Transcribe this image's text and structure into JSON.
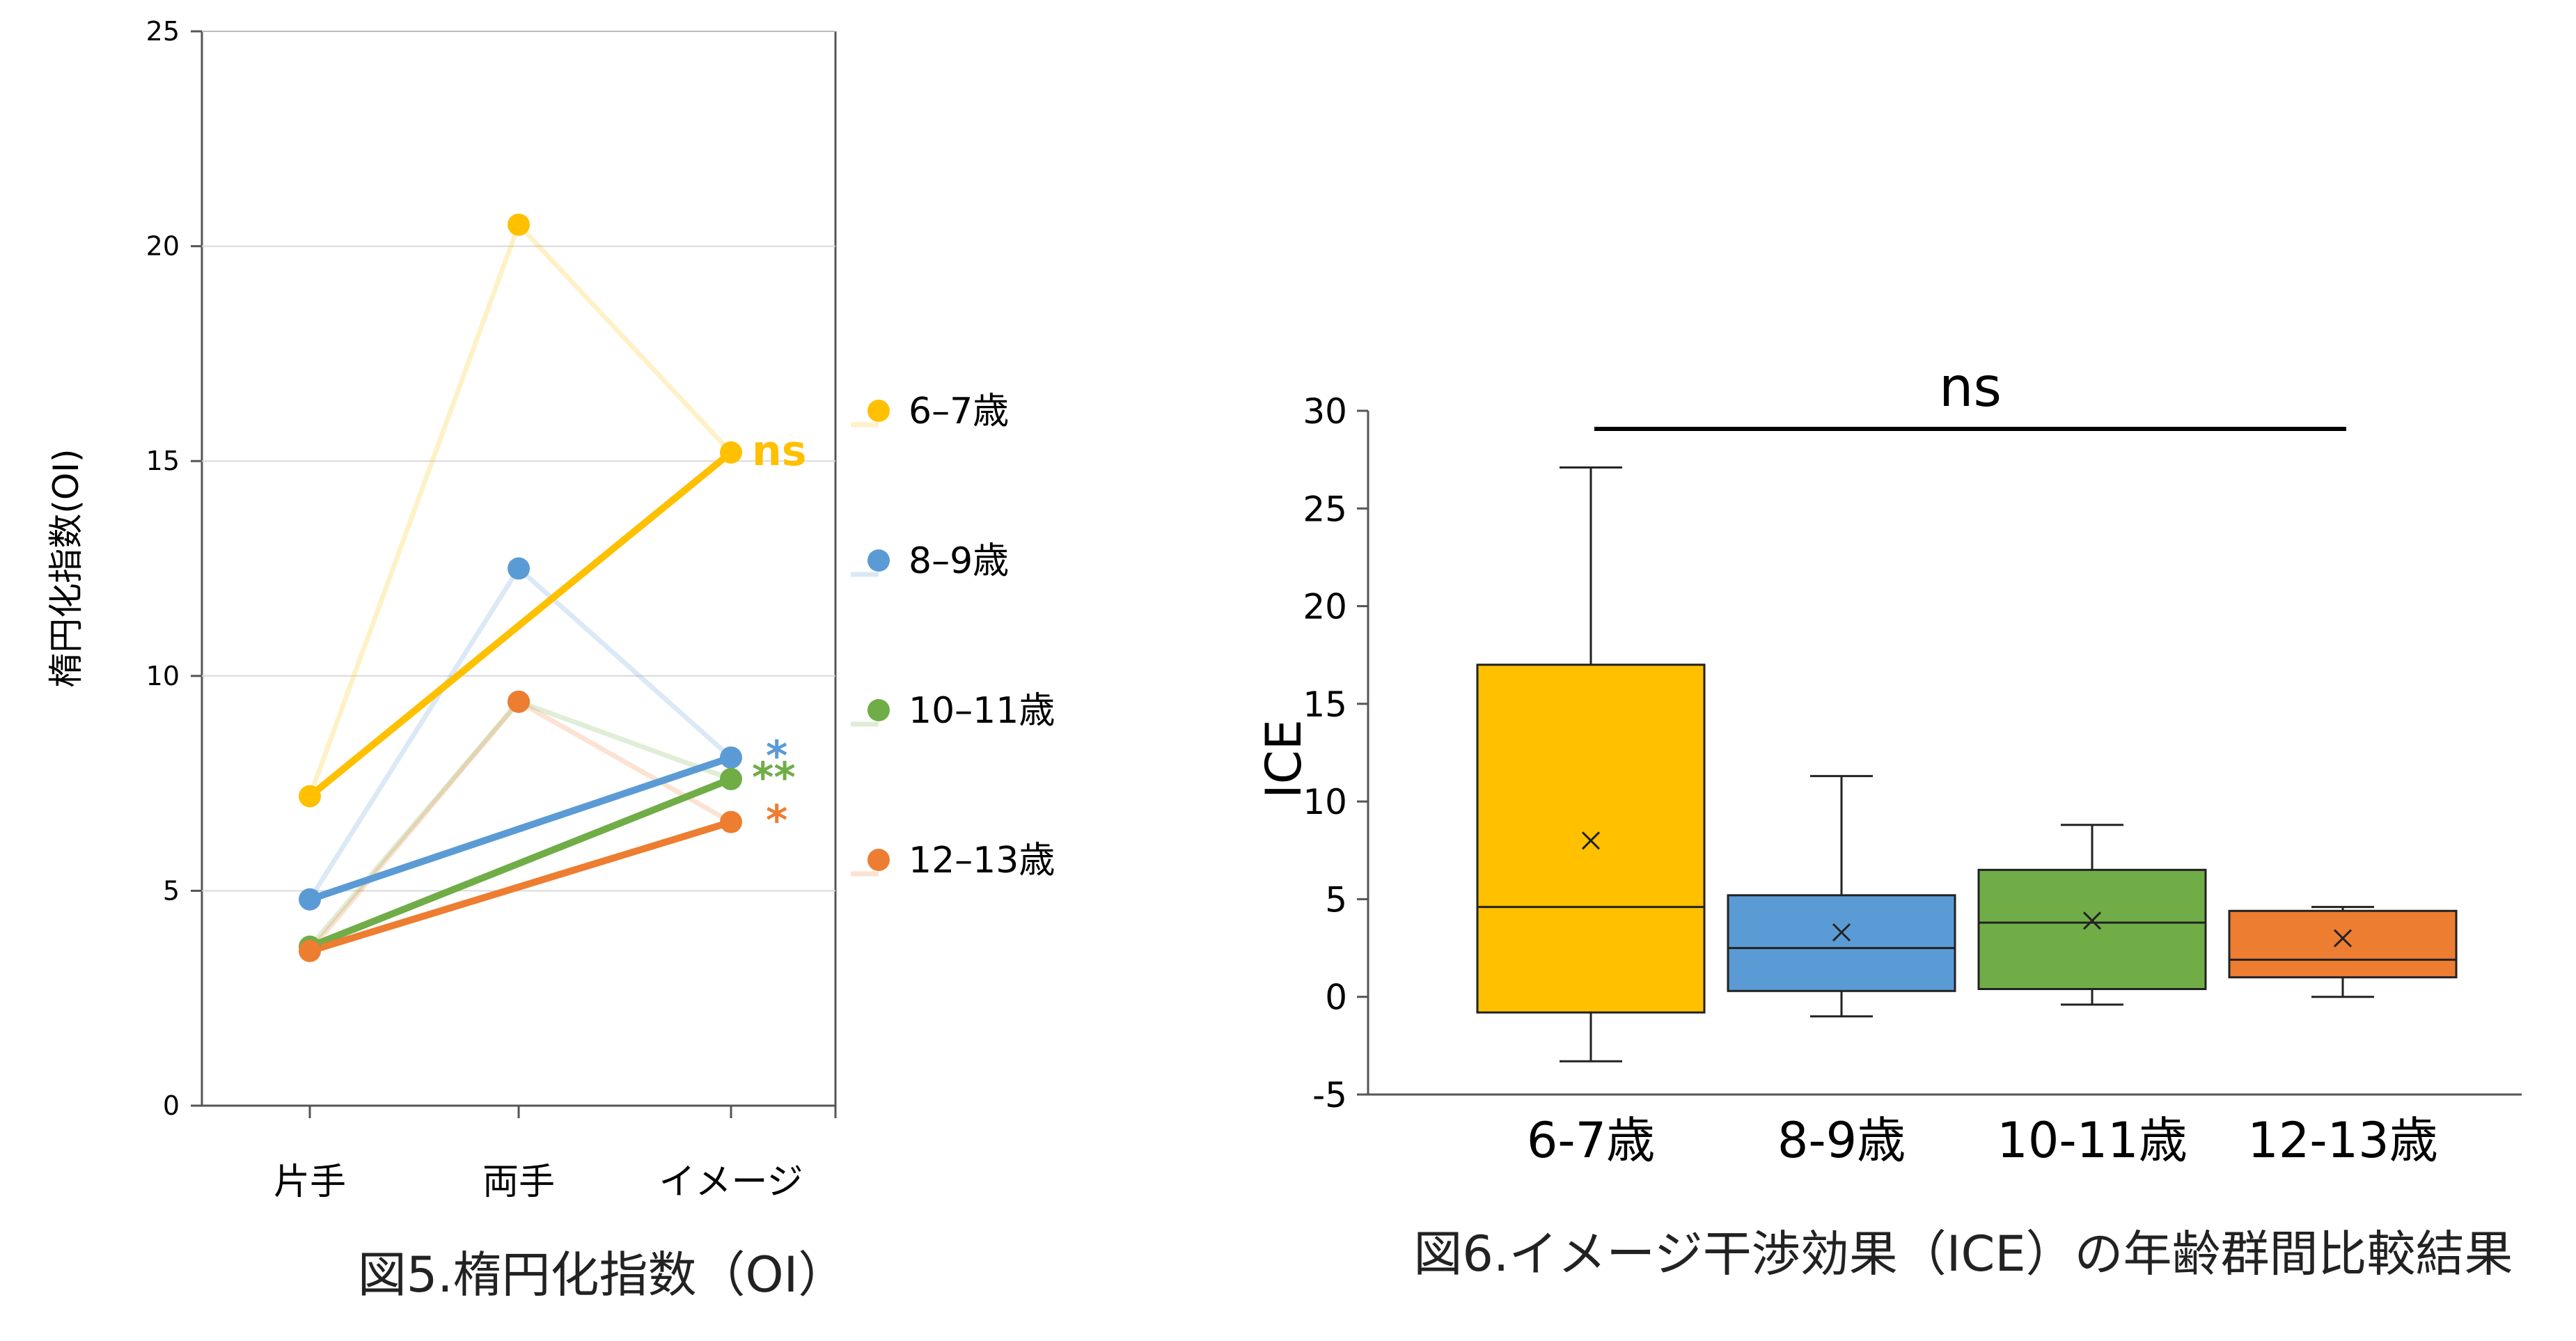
{
  "chart_data": [
    {
      "type": "line",
      "caption": "図5.楕円化指数（OI）",
      "ylabel": "楕円化指数(OI)",
      "categories": [
        "片手",
        "両手",
        "イメージ"
      ],
      "ylim": [
        0,
        25
      ],
      "yticks": [
        0,
        5,
        10,
        15,
        20,
        25
      ],
      "grid": true,
      "legend_position": "right",
      "series": [
        {
          "name": "6–7歳",
          "color": "#FFC000",
          "values": [
            7.2,
            20.5,
            15.2
          ],
          "paired": [
            7.2,
            15.2
          ],
          "significance": "ns"
        },
        {
          "name": "8–9歳",
          "color": "#5B9BD5",
          "values": [
            4.8,
            12.5,
            8.1
          ],
          "paired": [
            4.8,
            8.1
          ],
          "significance": "*"
        },
        {
          "name": "10–11歳",
          "color": "#70AD47",
          "values": [
            3.7,
            9.4,
            7.6
          ],
          "paired": [
            3.7,
            7.6
          ],
          "significance": "**"
        },
        {
          "name": "12–13歳",
          "color": "#ED7D31",
          "values": [
            3.6,
            9.4,
            6.6
          ],
          "paired": [
            3.6,
            6.6
          ],
          "significance": "*"
        }
      ]
    },
    {
      "type": "box",
      "caption": "図6.イメージ干渉効果（ICE）の年齢群間比較結果",
      "ylabel": "ICE",
      "categories": [
        "6-7歳",
        "8-9歳",
        "10-11歳",
        "12-13歳"
      ],
      "ylim": [
        -5,
        30
      ],
      "yticks": [
        -5,
        0,
        5,
        10,
        15,
        20,
        25,
        30
      ],
      "significance": "ns",
      "boxes": [
        {
          "color": "#FFC000",
          "min": -3.3,
          "q1": -0.8,
          "median": 4.6,
          "q3": 17.0,
          "max": 27.1,
          "mean": 8.0
        },
        {
          "color": "#5B9BD5",
          "min": -1.0,
          "q1": 0.3,
          "median": 2.5,
          "q3": 5.2,
          "max": 11.3,
          "mean": 3.3
        },
        {
          "color": "#70AD47",
          "min": -0.4,
          "q1": 0.4,
          "median": 3.8,
          "q3": 6.5,
          "max": 8.8,
          "mean": 3.9
        },
        {
          "color": "#ED7D31",
          "min": 0.0,
          "q1": 1.0,
          "median": 1.9,
          "q3": 4.4,
          "max": 4.6,
          "mean": 3.0
        }
      ]
    }
  ]
}
